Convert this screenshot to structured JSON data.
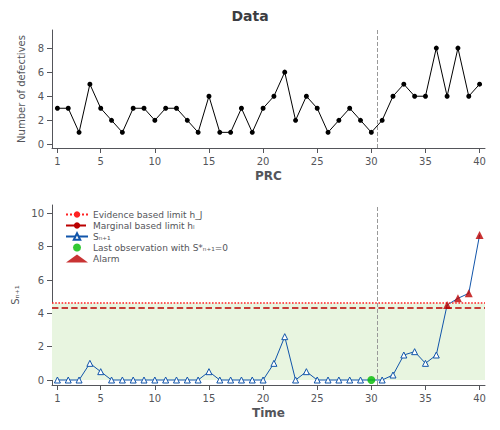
{
  "chart_data": [
    {
      "type": "line",
      "title": "Data",
      "xlabel": "PRC",
      "ylabel": "Number of defectives",
      "x": [
        1,
        2,
        3,
        4,
        5,
        6,
        7,
        8,
        9,
        10,
        11,
        12,
        13,
        14,
        15,
        16,
        17,
        18,
        19,
        20,
        21,
        22,
        23,
        24,
        25,
        26,
        27,
        28,
        29,
        30,
        31,
        32,
        33,
        34,
        35,
        36,
        37,
        38,
        39,
        40
      ],
      "values": [
        3,
        3,
        1,
        5,
        3,
        2,
        1,
        3,
        3,
        2,
        3,
        3,
        2,
        1,
        4,
        1,
        1,
        3,
        1,
        3,
        4,
        6,
        2,
        4,
        3,
        1,
        2,
        3,
        2,
        1,
        2,
        4,
        5,
        4,
        4,
        8,
        4,
        8,
        4,
        5
      ],
      "color": "#000000",
      "marker": "circle",
      "xlim": [
        0.5,
        40.5
      ],
      "ylim": [
        -0.3,
        9.5
      ],
      "xticks": [
        1,
        5,
        10,
        15,
        20,
        25,
        30,
        35,
        40
      ],
      "yticks": [
        0,
        2,
        4,
        6,
        8
      ],
      "grid": false,
      "vline": {
        "x": 30.5,
        "color": "#999999",
        "line_style": "dashed"
      }
    },
    {
      "type": "line",
      "xlabel": "Time",
      "ylabel": "Sₙ₊₁",
      "xlim": [
        0.5,
        40.5
      ],
      "ylim": [
        -0.3,
        10.5
      ],
      "xticks": [
        1,
        5,
        10,
        15,
        20,
        25,
        30,
        35,
        40
      ],
      "yticks": [
        0,
        2,
        4,
        6,
        8,
        10
      ],
      "grid": false,
      "legend": "upper left",
      "vline": {
        "x": 30.5,
        "color": "#999999",
        "line_style": "dashed"
      },
      "band": {
        "y": [
          0,
          4.605
        ],
        "color": "#E8F5E0"
      },
      "series": [
        {
          "name": "Evidence based limit h_J",
          "type": "hline",
          "values": [
            4.605
          ],
          "color": "#FF2222",
          "line_style": "dotted"
        },
        {
          "name": "Marginal based limit hₗ",
          "type": "hline",
          "values": [
            4.332
          ],
          "color": "#BB0000",
          "line_style": "dashed"
        },
        {
          "name": "Sₙ₊₁",
          "type": "line",
          "color": "#1155AA",
          "marker": "open triangle",
          "x": [
            1,
            2,
            3,
            4,
            5,
            6,
            7,
            8,
            9,
            10,
            11,
            12,
            13,
            14,
            15,
            16,
            17,
            18,
            19,
            20,
            21,
            22,
            23,
            24,
            25,
            26,
            27,
            28,
            29,
            30,
            31,
            32,
            33,
            34,
            35,
            36,
            37,
            38,
            39,
            40
          ],
          "values": [
            0,
            0,
            0,
            1,
            0.5,
            0,
            0,
            0,
            0,
            0,
            0,
            0,
            0,
            0,
            0.5,
            0,
            0,
            0,
            0,
            0,
            1.0,
            2.6,
            0,
            0.5,
            0,
            0,
            0,
            0,
            0,
            0,
            0,
            0.3,
            1.5,
            1.7,
            1.0,
            1.5,
            4.5,
            4.9,
            5.2,
            8.7
          ]
        },
        {
          "name": "Last observation with S*ₙ₊₁=0",
          "type": "scatter",
          "color": "#00BB00",
          "marker": "circle",
          "x": [
            30
          ],
          "values": [
            0
          ]
        },
        {
          "name": "Alarm",
          "type": "scatter",
          "color": "#BB0000",
          "marker": "triangle",
          "x": [
            37,
            38,
            39,
            40
          ],
          "values": [
            4.5,
            4.9,
            5.2,
            8.7
          ]
        }
      ]
    }
  ]
}
